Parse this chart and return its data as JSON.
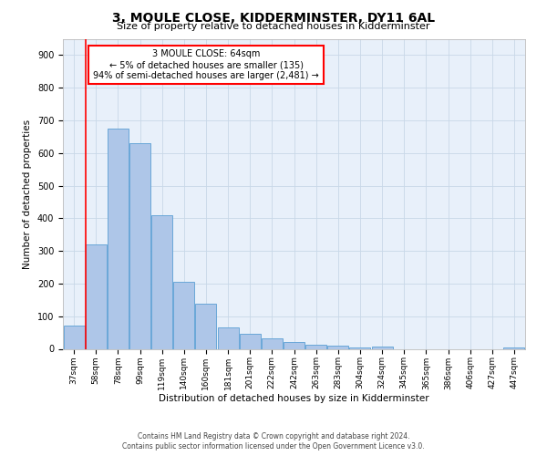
{
  "title": "3, MOULE CLOSE, KIDDERMINSTER, DY11 6AL",
  "subtitle": "Size of property relative to detached houses in Kidderminster",
  "xlabel": "Distribution of detached houses by size in Kidderminster",
  "ylabel": "Number of detached properties",
  "categories": [
    "37sqm",
    "58sqm",
    "78sqm",
    "99sqm",
    "119sqm",
    "140sqm",
    "160sqm",
    "181sqm",
    "201sqm",
    "222sqm",
    "242sqm",
    "263sqm",
    "283sqm",
    "304sqm",
    "324sqm",
    "345sqm",
    "365sqm",
    "386sqm",
    "406sqm",
    "427sqm",
    "447sqm"
  ],
  "values": [
    70,
    320,
    675,
    630,
    410,
    205,
    137,
    67,
    45,
    32,
    22,
    13,
    10,
    5,
    6,
    0,
    0,
    0,
    0,
    0,
    5
  ],
  "bar_color": "#aec6e8",
  "bar_edge_color": "#5a9fd4",
  "grid_color": "#c8d8e8",
  "background_color": "#e8f0fa",
  "annotation_box_text": "3 MOULE CLOSE: 64sqm\n← 5% of detached houses are smaller (135)\n94% of semi-detached houses are larger (2,481) →",
  "red_line_x": 1.0,
  "ylim": [
    0,
    950
  ],
  "yticks": [
    0,
    100,
    200,
    300,
    400,
    500,
    600,
    700,
    800,
    900
  ],
  "footer_line1": "Contains HM Land Registry data © Crown copyright and database right 2024.",
  "footer_line2": "Contains public sector information licensed under the Open Government Licence v3.0."
}
